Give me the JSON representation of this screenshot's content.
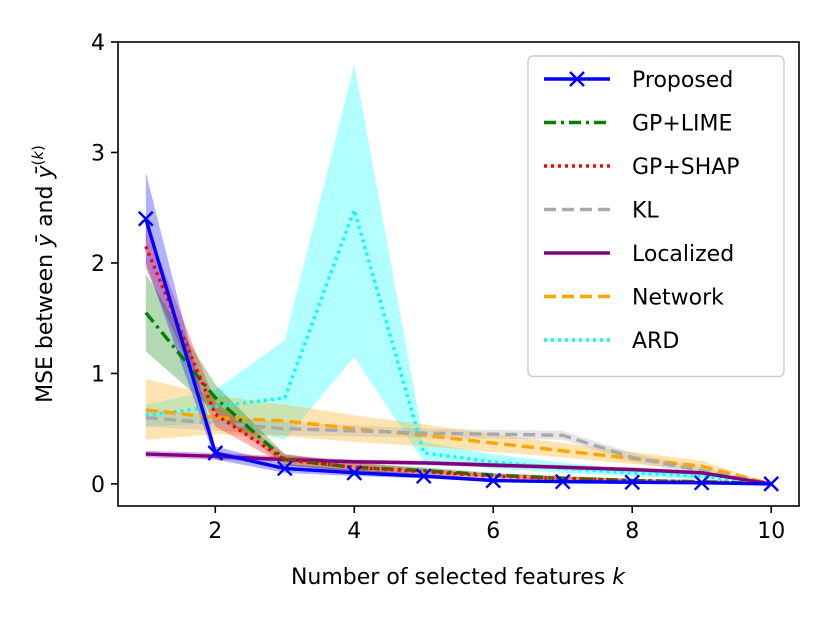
{
  "chart_data": {
    "type": "line",
    "xlabel": "Number of selected features k",
    "ylabel": "MSE between ȳ and ȳ(k)",
    "xlim": [
      0.6,
      10.4
    ],
    "ylim": [
      -0.2,
      4.0
    ],
    "xticks": [
      2,
      4,
      6,
      8,
      10
    ],
    "yticks": [
      0,
      1,
      2,
      3,
      4
    ],
    "grid": false,
    "legend_position": "top-right",
    "x": [
      1,
      2,
      3,
      4,
      5,
      6,
      7,
      8,
      9,
      10
    ],
    "series": [
      {
        "name": "ARD",
        "color": "#00ffff",
        "linestyle": "dotted",
        "values": [
          0.62,
          0.7,
          0.78,
          2.48,
          0.28,
          0.2,
          0.14,
          0.1,
          0.07,
          0.0
        ],
        "band_low": [
          0.52,
          0.55,
          0.4,
          1.15,
          0.2,
          0.14,
          0.1,
          0.07,
          0.04,
          0.0
        ],
        "band_high": [
          0.72,
          0.85,
          1.3,
          3.8,
          0.38,
          0.27,
          0.19,
          0.13,
          0.1,
          0.0
        ]
      },
      {
        "name": "Network",
        "color": "#ffa500",
        "linestyle": "dashed",
        "values": [
          0.67,
          0.6,
          0.57,
          0.5,
          0.44,
          0.37,
          0.3,
          0.23,
          0.16,
          0.0
        ],
        "band_low": [
          0.4,
          0.45,
          0.43,
          0.38,
          0.34,
          0.29,
          0.24,
          0.18,
          0.12,
          0.0
        ],
        "band_high": [
          0.95,
          0.8,
          0.72,
          0.62,
          0.54,
          0.45,
          0.37,
          0.29,
          0.21,
          0.0
        ]
      },
      {
        "name": "KL",
        "color": "#a9a9a9",
        "linestyle": "dashed",
        "values": [
          0.6,
          0.55,
          0.5,
          0.48,
          0.46,
          0.45,
          0.44,
          0.24,
          0.12,
          0.0
        ],
        "band_low": [
          0.52,
          0.48,
          0.44,
          0.43,
          0.42,
          0.41,
          0.4,
          0.2,
          0.09,
          0.0
        ],
        "band_high": [
          0.68,
          0.62,
          0.56,
          0.53,
          0.5,
          0.49,
          0.48,
          0.28,
          0.15,
          0.0
        ]
      },
      {
        "name": "Localized",
        "color": "#800080",
        "linestyle": "solid",
        "values": [
          0.27,
          0.25,
          0.22,
          0.2,
          0.19,
          0.17,
          0.15,
          0.13,
          0.1,
          0.0
        ],
        "band_low": [
          0.24,
          0.22,
          0.2,
          0.18,
          0.17,
          0.15,
          0.13,
          0.11,
          0.08,
          0.0
        ],
        "band_high": [
          0.3,
          0.28,
          0.25,
          0.22,
          0.21,
          0.19,
          0.17,
          0.15,
          0.12,
          0.0
        ]
      },
      {
        "name": "GP+LIME",
        "color": "#008000",
        "linestyle": "dashdot",
        "values": [
          1.55,
          0.78,
          0.22,
          0.15,
          0.12,
          0.08,
          0.05,
          0.03,
          0.02,
          0.0
        ],
        "band_low": [
          1.2,
          0.65,
          0.17,
          0.11,
          0.09,
          0.06,
          0.03,
          0.02,
          0.01,
          0.0
        ],
        "band_high": [
          1.9,
          0.9,
          0.27,
          0.19,
          0.15,
          0.1,
          0.07,
          0.05,
          0.03,
          0.0
        ]
      },
      {
        "name": "GP+SHAP",
        "color": "#ff0000",
        "linestyle": "dotted",
        "values": [
          2.15,
          0.63,
          0.22,
          0.15,
          0.11,
          0.07,
          0.05,
          0.03,
          0.02,
          0.0
        ],
        "band_low": [
          1.95,
          0.52,
          0.17,
          0.11,
          0.08,
          0.05,
          0.03,
          0.02,
          0.01,
          0.0
        ],
        "band_high": [
          2.35,
          0.74,
          0.27,
          0.19,
          0.14,
          0.09,
          0.07,
          0.04,
          0.03,
          0.0
        ]
      },
      {
        "name": "Proposed",
        "color": "#0000ff",
        "linestyle": "solid",
        "marker": "x",
        "values": [
          2.4,
          0.28,
          0.14,
          0.1,
          0.07,
          0.03,
          0.02,
          0.015,
          0.01,
          0.0
        ],
        "band_low": [
          2.0,
          0.22,
          0.1,
          0.07,
          0.05,
          0.02,
          0.01,
          0.01,
          0.005,
          0.0
        ],
        "band_high": [
          2.82,
          0.34,
          0.18,
          0.13,
          0.09,
          0.05,
          0.03,
          0.02,
          0.015,
          0.0
        ]
      }
    ],
    "legend_order": [
      "Proposed",
      "GP+LIME",
      "GP+SHAP",
      "KL",
      "Localized",
      "Network",
      "ARD"
    ]
  }
}
